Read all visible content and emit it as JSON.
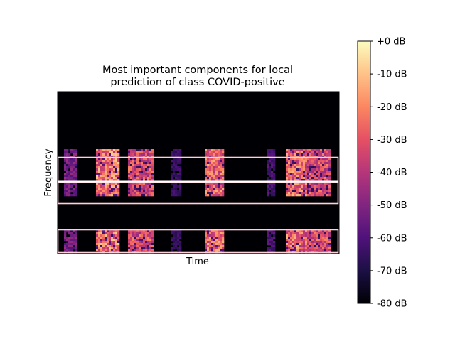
{
  "chart_data": {
    "type": "heatmap",
    "title": "Most important components for local\nprediction of class COVID-positive",
    "xlabel": "Time",
    "ylabel": "Frequency",
    "colormap": "magma",
    "colorbar": {
      "range_db": [
        -80,
        0
      ],
      "ticks": [
        "+0 dB",
        "-10 dB",
        "-20 dB",
        "-30 dB",
        "-40 dB",
        "-50 dB",
        "-60 dB",
        "-70 dB",
        "-80 dB"
      ]
    },
    "highlight_color": "#ffd0d8",
    "highlighted_components": 3,
    "activity_segments": [
      {
        "t": [
          0.02,
          0.07
        ],
        "level": 0.45
      },
      {
        "t": [
          0.14,
          0.22
        ],
        "level": 0.9
      },
      {
        "t": [
          0.25,
          0.34
        ],
        "level": 0.75
      },
      {
        "t": [
          0.4,
          0.44
        ],
        "level": 0.25
      },
      {
        "t": [
          0.52,
          0.59
        ],
        "level": 0.85
      },
      {
        "t": [
          0.74,
          0.77
        ],
        "level": 0.3
      },
      {
        "t": [
          0.81,
          0.89
        ],
        "level": 0.85
      },
      {
        "t": [
          0.89,
          0.97
        ],
        "level": 0.75
      }
    ],
    "active_bands": [
      {
        "f": [
          0.36,
          0.64
        ],
        "gain": 1.0
      },
      {
        "f": [
          0.86,
          1.0
        ],
        "gain": 1.0
      }
    ]
  }
}
